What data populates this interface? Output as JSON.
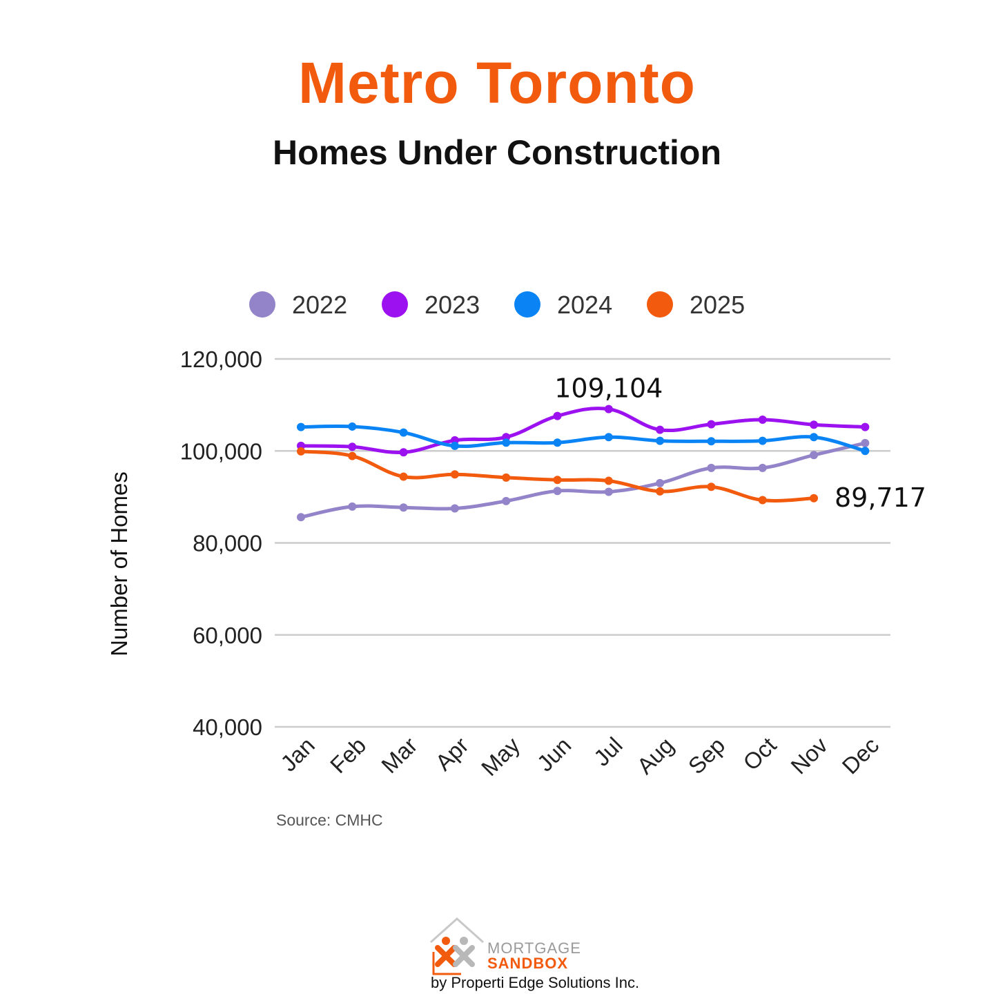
{
  "chart_data": {
    "type": "line",
    "title": "Metro Toronto",
    "subtitle": "Homes Under Construction",
    "ylabel": "Number of Homes",
    "xlabel": "",
    "source": "Source: CMHC",
    "categories": [
      "Jan",
      "Feb",
      "Mar",
      "Apr",
      "May",
      "Jun",
      "Jul",
      "Aug",
      "Sep",
      "Oct",
      "Nov",
      "Dec"
    ],
    "ylim": [
      40000,
      120000
    ],
    "yticks": [
      {
        "value": 40000,
        "label": "40,000"
      },
      {
        "value": 60000,
        "label": "60,000"
      },
      {
        "value": 80000,
        "label": "80,000"
      },
      {
        "value": 100000,
        "label": "100,000"
      },
      {
        "value": 120000,
        "label": "120,000"
      }
    ],
    "grid": true,
    "legend_position": "top",
    "series": [
      {
        "name": "2022",
        "color": "#9383c9",
        "values": [
          85600,
          87900,
          87700,
          87500,
          89100,
          91300,
          91100,
          93000,
          96300,
          96300,
          99100,
          101700
        ]
      },
      {
        "name": "2023",
        "color": "#9b11f0",
        "values": [
          101100,
          100900,
          99700,
          102300,
          103000,
          107600,
          109104,
          104600,
          105800,
          106800,
          105700,
          105200
        ]
      },
      {
        "name": "2024",
        "color": "#0a84f5",
        "values": [
          105200,
          105300,
          104000,
          101100,
          101800,
          101800,
          103000,
          102200,
          102100,
          102200,
          103000,
          100000
        ]
      },
      {
        "name": "2025",
        "color": "#f25a0d",
        "values": [
          99900,
          98900,
          94400,
          94900,
          94200,
          93700,
          93500,
          91200,
          92200,
          89300,
          89717,
          null
        ]
      }
    ],
    "annotations": [
      {
        "text": "109,104",
        "series": "2023",
        "category": "Jul"
      },
      {
        "text": "89,717",
        "series": "2025",
        "category": "Nov"
      }
    ]
  },
  "branding": {
    "logo_line1": "MORTGAGE",
    "logo_line2": "SANDBOX",
    "tagline": "by Properti Edge Solutions Inc."
  },
  "colors": {
    "accent": "#f25a0d",
    "grid": "#cccccc",
    "text": "#111111"
  },
  "icons": {
    "logo": "house-outline-with-people-icon"
  }
}
